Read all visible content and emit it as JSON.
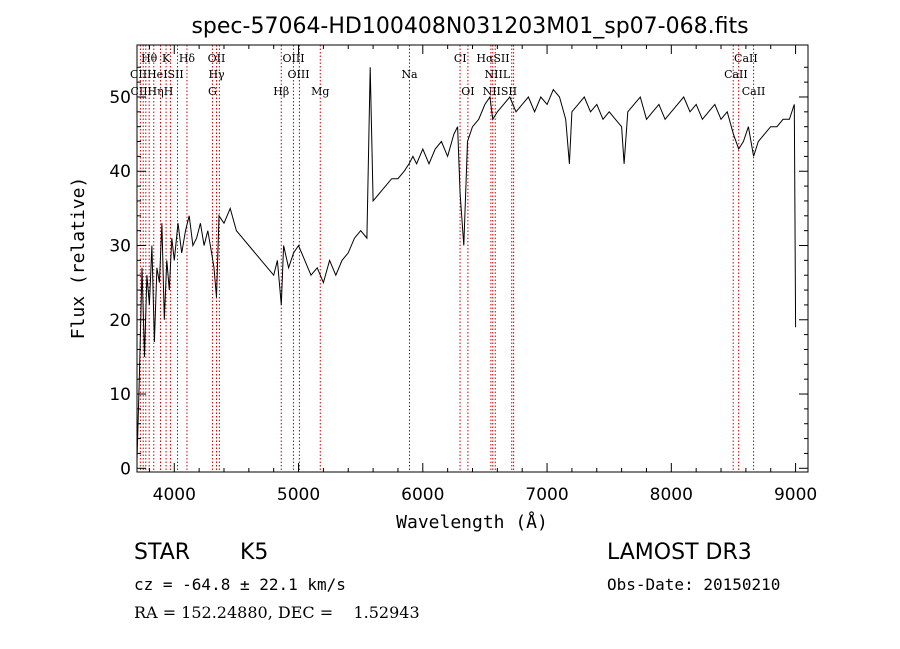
{
  "chart_data": {
    "type": "line",
    "title": "spec-57064-HD100408N031203M01_sp07-068.fits",
    "xlabel": "Wavelength (Å)",
    "ylabel": "Flux (relative)",
    "xlim": [
      3700,
      9100
    ],
    "ylim": [
      -0.5,
      57
    ],
    "xticks": [
      4000,
      5000,
      6000,
      7000,
      8000,
      9000
    ],
    "yticks": [
      0,
      10,
      20,
      30,
      40,
      50
    ],
    "series": [
      {
        "name": "spectrum",
        "x": [
          3700,
          3720,
          3740,
          3760,
          3780,
          3800,
          3820,
          3840,
          3860,
          3880,
          3900,
          3920,
          3940,
          3960,
          3980,
          4000,
          4030,
          4060,
          4090,
          4120,
          4150,
          4180,
          4210,
          4240,
          4270,
          4300,
          4320,
          4340,
          4360,
          4400,
          4450,
          4500,
          4550,
          4600,
          4650,
          4700,
          4750,
          4800,
          4830,
          4861,
          4880,
          4920,
          4960,
          5000,
          5050,
          5100,
          5150,
          5200,
          5250,
          5300,
          5350,
          5400,
          5450,
          5500,
          5550,
          5577,
          5600,
          5650,
          5700,
          5750,
          5800,
          5850,
          5890,
          5920,
          5950,
          6000,
          6050,
          6100,
          6150,
          6200,
          6250,
          6280,
          6300,
          6330,
          6360,
          6400,
          6450,
          6500,
          6540,
          6563,
          6600,
          6650,
          6700,
          6750,
          6800,
          6850,
          6900,
          6950,
          7000,
          7050,
          7100,
          7150,
          7180,
          7200,
          7250,
          7300,
          7350,
          7400,
          7450,
          7500,
          7550,
          7600,
          7620,
          7650,
          7700,
          7750,
          7800,
          7850,
          7900,
          7950,
          8000,
          8050,
          8100,
          8150,
          8200,
          8250,
          8300,
          8350,
          8400,
          8450,
          8500,
          8542,
          8580,
          8620,
          8662,
          8700,
          8750,
          8800,
          8850,
          8900,
          8950,
          8990,
          9000
        ],
        "y": [
          1,
          13,
          27,
          15,
          26,
          22,
          30,
          17,
          27,
          25,
          33,
          20,
          28,
          24,
          31,
          28,
          33,
          29,
          32,
          34,
          30,
          31,
          33,
          30,
          32,
          29,
          27,
          23,
          34,
          33,
          35,
          32,
          31,
          30,
          29,
          28,
          27,
          26,
          28,
          22,
          30,
          27,
          29,
          30,
          28,
          26,
          27,
          25,
          28,
          26,
          28,
          29,
          31,
          32,
          31,
          54,
          36,
          37,
          38,
          39,
          39,
          40,
          41,
          42,
          41,
          43,
          41,
          43,
          44,
          42,
          45,
          46,
          37,
          30,
          44,
          46,
          47,
          49,
          50,
          47,
          48,
          49,
          50,
          48,
          49,
          50,
          48,
          50,
          49,
          51,
          50,
          47,
          41,
          48,
          49,
          50,
          48,
          49,
          47,
          48,
          47,
          46,
          41,
          48,
          49,
          50,
          47,
          48,
          49,
          47,
          48,
          49,
          50,
          48,
          49,
          47,
          48,
          49,
          47,
          48,
          45,
          43,
          44,
          46,
          42,
          44,
          45,
          46,
          46,
          47,
          47,
          49,
          19
        ]
      }
    ],
    "lines_top": [
      {
        "label": "Hθ",
        "wl": 3798
      },
      {
        "label": "K",
        "wl": 3934
      },
      {
        "label": "Hδ",
        "wl": 4102
      },
      {
        "label": "OII",
        "wl": 4340
      },
      {
        "label": "OIII",
        "wl": 4960
      },
      {
        "label": "CI",
        "wl": 6301
      },
      {
        "label": "HαSII",
        "wl": 6565
      },
      {
        "label": "CaII",
        "wl": 8600
      }
    ],
    "lines_mid": [
      {
        "label": "CIIHeISII",
        "wl": 3860
      },
      {
        "label": "Hγ",
        "wl": 4340
      },
      {
        "label": "OIII",
        "wl": 5000
      },
      {
        "label": "Na",
        "wl": 5893
      },
      {
        "label": "NIIL",
        "wl": 6600
      },
      {
        "label": "CaII",
        "wl": 8520
      }
    ],
    "lines_low": [
      {
        "label": "CIIHηH",
        "wl": 3820
      },
      {
        "label": "G",
        "wl": 4307
      },
      {
        "label": "Hβ",
        "wl": 4861
      },
      {
        "label": "Mg",
        "wl": 5175
      },
      {
        "label": "OI",
        "wl": 6363
      },
      {
        "label": "NIISII",
        "wl": 6620
      },
      {
        "label": "CaII",
        "wl": 8662
      }
    ],
    "marker_wavelengths": [
      3727,
      3750,
      3771,
      3798,
      3835,
      3889,
      3934,
      3969,
      4026,
      4102,
      4307,
      4340,
      4363,
      4861,
      4959,
      5007,
      5175,
      5893,
      6300,
      6363,
      6548,
      6563,
      6583,
      6716,
      6731,
      8498,
      8542,
      8662
    ]
  },
  "info": {
    "class": "STAR",
    "subclass": "K5",
    "survey": "LAMOST DR3",
    "cz": "cz = -64.8 ± 22.1 km/s",
    "obs_date": "Obs-Date: 20150210",
    "radec": "RA = 152.24880, DEC =    1.52943"
  },
  "colors": {
    "spectrum": "#000000",
    "marker": "#cc0000",
    "axis": "#000000"
  }
}
